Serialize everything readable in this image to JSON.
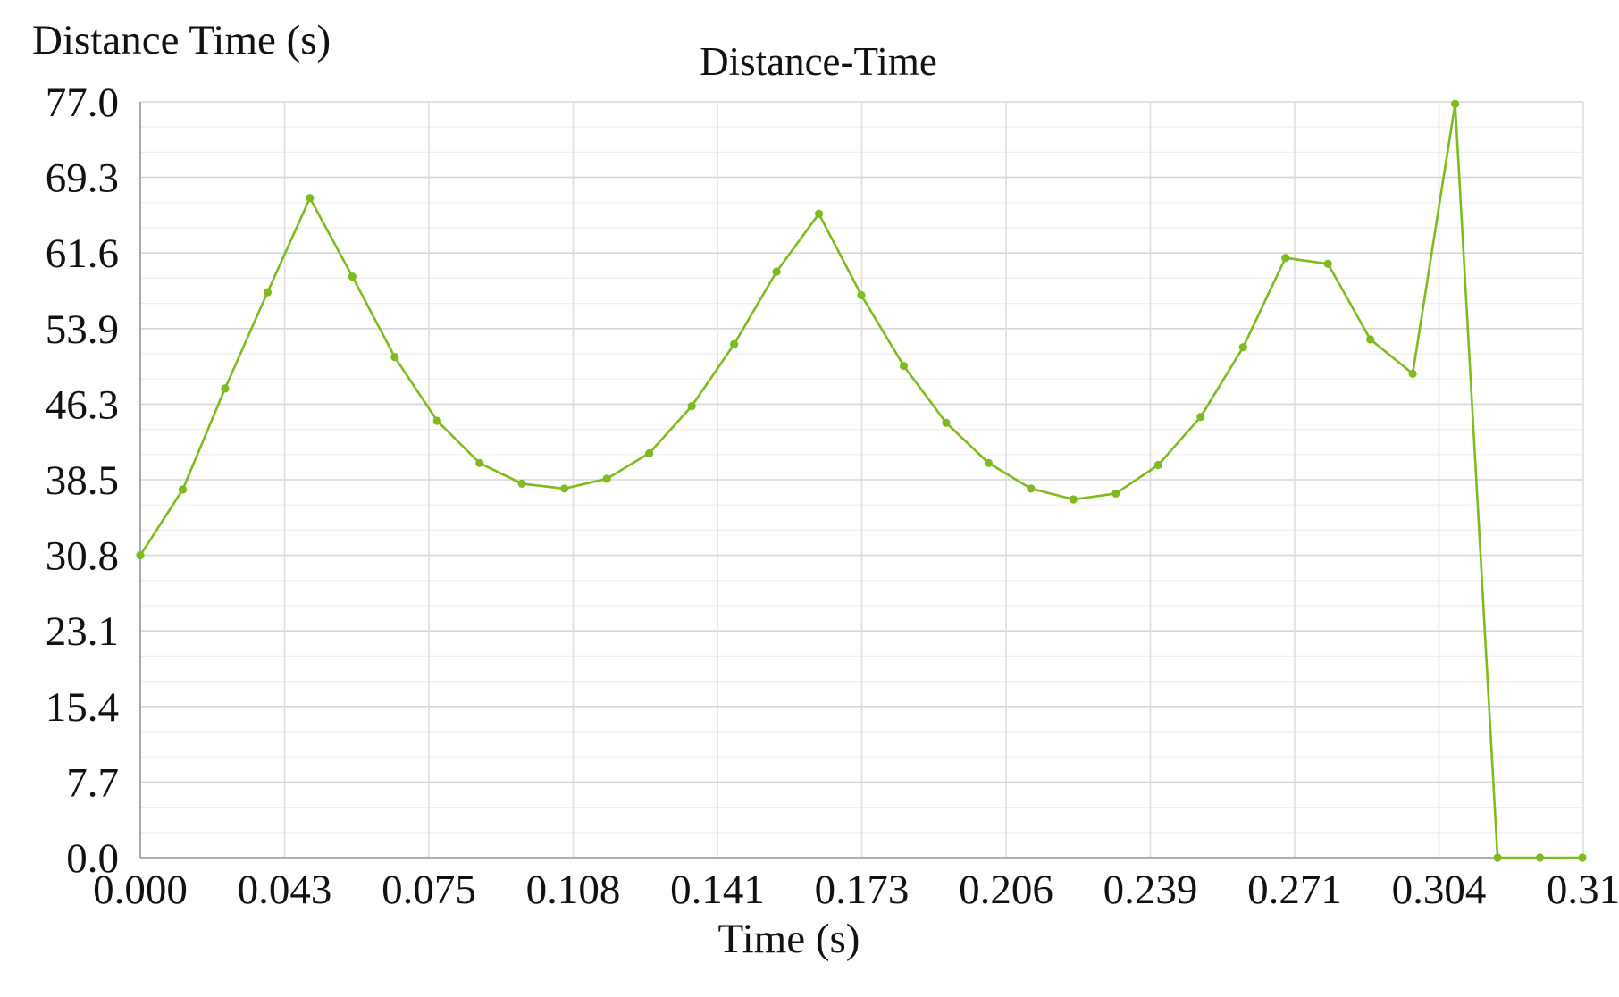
{
  "chart_data": {
    "type": "line",
    "title": "Distance-Time",
    "ylabel": "Distance Time (s)",
    "xlabel": "Time (s)",
    "x_tick_labels": [
      "0.000",
      "0.043",
      "0.075",
      "0.108",
      "0.141",
      "0.173",
      "0.206",
      "0.239",
      "0.271",
      "0.304",
      "0.31"
    ],
    "y_tick_labels": [
      "77.0",
      "69.3",
      "61.6",
      "53.9",
      "46.3",
      "38.5",
      "30.8",
      "23.1",
      "15.4",
      "7.7",
      "0.0"
    ],
    "xlim": [
      0,
      0.33
    ],
    "ylim": [
      0,
      77
    ],
    "grid": true,
    "legend": "none",
    "series": [
      {
        "color": "#7dbb1e",
        "x": [
          0.0,
          0.0097,
          0.0194,
          0.0291,
          0.0388,
          0.0485,
          0.0582,
          0.0679,
          0.0776,
          0.0873,
          0.097,
          0.1067,
          0.1164,
          0.1261,
          0.1358,
          0.1455,
          0.1552,
          0.1649,
          0.1746,
          0.1843,
          0.194,
          0.2037,
          0.2134,
          0.2231,
          0.2328,
          0.2425,
          0.2522,
          0.2619,
          0.2716,
          0.2813,
          0.291,
          0.3007,
          0.3104,
          0.3201,
          0.3298
        ],
        "y": [
          30.8,
          37.5,
          47.8,
          57.6,
          67.2,
          59.2,
          51.0,
          44.5,
          40.2,
          38.1,
          37.6,
          38.6,
          41.2,
          46.0,
          52.3,
          59.7,
          65.6,
          57.3,
          50.1,
          44.3,
          40.2,
          37.6,
          36.5,
          37.1,
          40.0,
          44.9,
          52.0,
          61.1,
          60.5,
          52.8,
          49.3,
          76.8,
          0.0,
          0.0,
          0.0
        ]
      }
    ]
  }
}
